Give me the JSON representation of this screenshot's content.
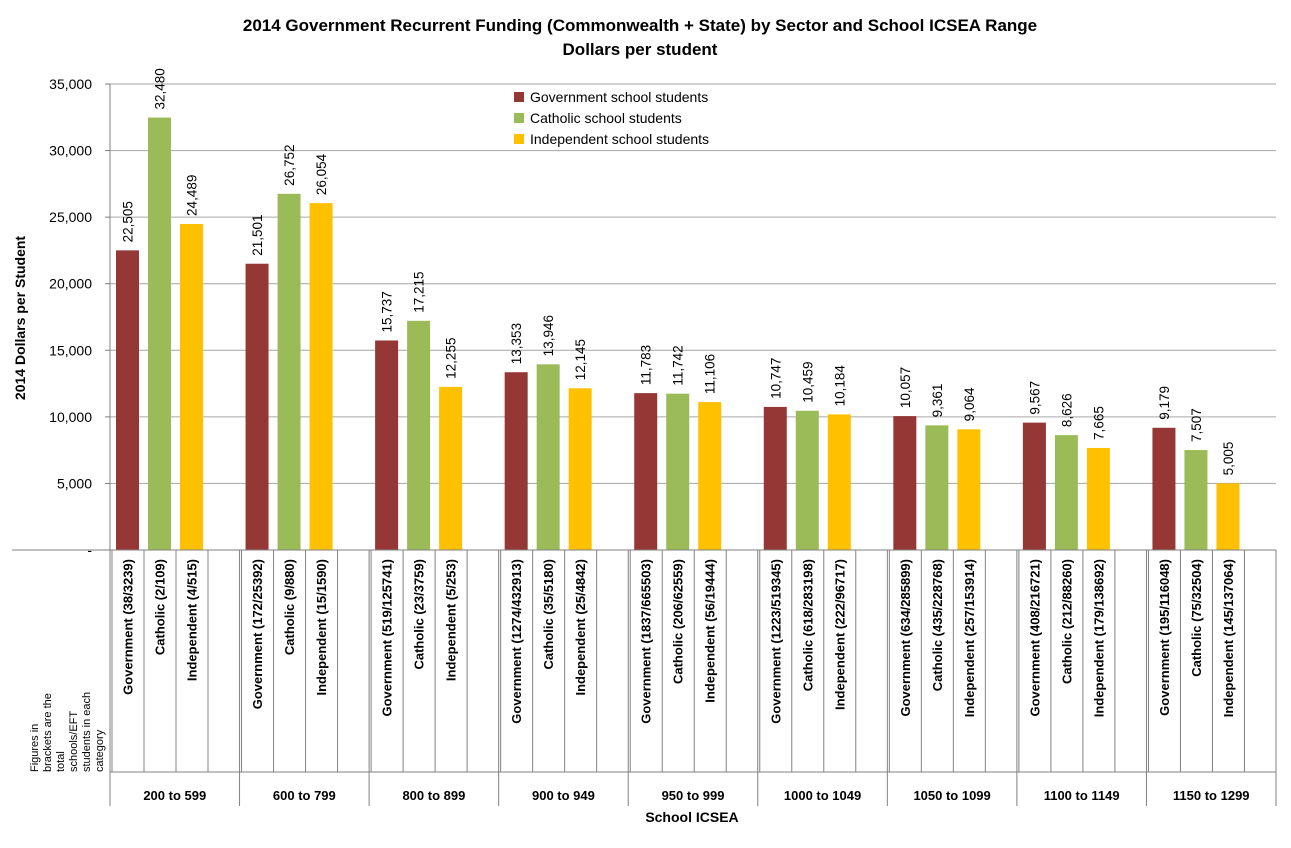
{
  "chart_data": {
    "type": "bar",
    "title": "2014 Government Recurrent Funding (Commonwealth + State) by Sector and School ICSEA Range",
    "subtitle": "Dollars per student",
    "ylabel": "2014 Dollars per Student",
    "xlabel": "School ICSEA",
    "ylim": [
      0,
      35000
    ],
    "yticks": [
      {
        "value": 0,
        "label": "-"
      },
      {
        "value": 5000,
        "label": "5,000"
      },
      {
        "value": 10000,
        "label": "10,000"
      },
      {
        "value": 15000,
        "label": "15,000"
      },
      {
        "value": 20000,
        "label": "20,000"
      },
      {
        "value": 25000,
        "label": "25,000"
      },
      {
        "value": 30000,
        "label": "30,000"
      },
      {
        "value": 35000,
        "label": "35,000"
      }
    ],
    "grid": true,
    "legend_position": "top-center",
    "note": "Figures in brackets are the total schools/EFT students in each category",
    "series": [
      {
        "name": "Government school students",
        "color": "#953735"
      },
      {
        "name": "Catholic school students",
        "color": "#9BBB59"
      },
      {
        "name": "Independent school students",
        "color": "#FFC000"
      }
    ],
    "groups": [
      {
        "label": "200 to 599",
        "bars": [
          {
            "label": "Government (38/3239)",
            "value": 22505,
            "text": "22,505"
          },
          {
            "label": "Catholic (2/109)",
            "value": 32480,
            "text": "32,480"
          },
          {
            "label": "Independent (4/515)",
            "value": 24489,
            "text": "24,489"
          }
        ]
      },
      {
        "label": "600 to 799",
        "bars": [
          {
            "label": "Government (172/25392)",
            "value": 21501,
            "text": "21,501"
          },
          {
            "label": "Catholic (9/880)",
            "value": 26752,
            "text": "26,752"
          },
          {
            "label": "Independent (15/1590)",
            "value": 26054,
            "text": "26,054"
          }
        ]
      },
      {
        "label": "800 to 899",
        "bars": [
          {
            "label": "Government (519/125741)",
            "value": 15737,
            "text": "15,737"
          },
          {
            "label": "Catholic (23/3759)",
            "value": 17215,
            "text": "17,215"
          },
          {
            "label": "Independent (5/253)",
            "value": 12255,
            "text": "12,255"
          }
        ]
      },
      {
        "label": "900 to 949",
        "bars": [
          {
            "label": "Government (1274/432913)",
            "value": 13353,
            "text": "13,353"
          },
          {
            "label": "Catholic (35/5180)",
            "value": 13946,
            "text": "13,946"
          },
          {
            "label": "Independent (25/4842)",
            "value": 12145,
            "text": "12,145"
          }
        ]
      },
      {
        "label": "950 to 999",
        "bars": [
          {
            "label": "Government (1837/665503)",
            "value": 11783,
            "text": "11,783"
          },
          {
            "label": "Catholic (206/62559)",
            "value": 11742,
            "text": "11,742"
          },
          {
            "label": "Independent (56/19444)",
            "value": 11106,
            "text": "11,106"
          }
        ]
      },
      {
        "label": "1000 to 1049",
        "bars": [
          {
            "label": "Government (1223/519345)",
            "value": 10747,
            "text": "10,747"
          },
          {
            "label": "Catholic (618/283198)",
            "value": 10459,
            "text": "10,459"
          },
          {
            "label": "Independent (222/96717)",
            "value": 10184,
            "text": "10,184"
          }
        ]
      },
      {
        "label": "1050 to 1099",
        "bars": [
          {
            "label": "Government (634/285899)",
            "value": 10057,
            "text": "10,057"
          },
          {
            "label": "Catholic (435/228768)",
            "value": 9361,
            "text": "9,361"
          },
          {
            "label": "Independent (257/153914)",
            "value": 9064,
            "text": "9,064"
          }
        ]
      },
      {
        "label": "1100 to 1149",
        "bars": [
          {
            "label": "Government (408/216721)",
            "value": 9567,
            "text": "9,567"
          },
          {
            "label": "Catholic (212/88260)",
            "value": 8626,
            "text": "8,626"
          },
          {
            "label": "Independent (179/138692)",
            "value": 7665,
            "text": "7,665"
          }
        ]
      },
      {
        "label": "1150 to 1299",
        "bars": [
          {
            "label": "Government (195/116048)",
            "value": 9179,
            "text": "9,179"
          },
          {
            "label": "Catholic (75/32504)",
            "value": 7507,
            "text": "7,507"
          },
          {
            "label": "Independent (145/137064)",
            "value": 5005,
            "text": "5,005"
          }
        ]
      }
    ]
  }
}
